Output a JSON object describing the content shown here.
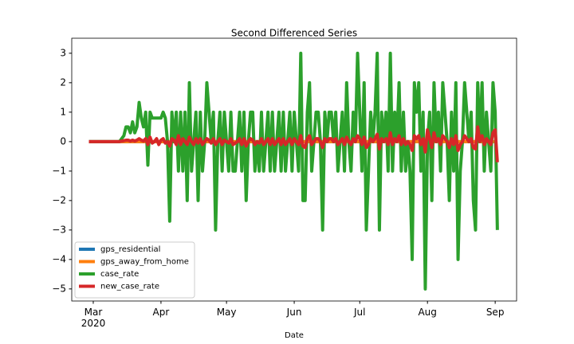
{
  "chart_data": {
    "type": "line",
    "title": "Second Differenced Series",
    "x_label": "Date",
    "categories": [
      null,
      null,
      "Mar\n2020",
      null,
      null,
      null,
      null,
      null,
      null,
      null,
      null,
      null,
      null,
      null,
      null,
      null,
      null,
      null,
      null,
      null,
      null,
      null,
      null,
      null,
      null,
      null,
      null,
      null,
      null,
      null,
      null,
      null,
      null,
      "Apr",
      null,
      null,
      null,
      null,
      null,
      null,
      null,
      null,
      null,
      null,
      null,
      null,
      null,
      null,
      null,
      null,
      null,
      null,
      null,
      null,
      null,
      null,
      null,
      null,
      null,
      null,
      null,
      null,
      null,
      "May",
      null,
      null,
      null,
      null,
      null,
      null,
      null,
      null,
      null,
      null,
      null,
      null,
      null,
      null,
      null,
      null,
      null,
      null,
      null,
      null,
      null,
      null,
      null,
      null,
      null,
      null,
      null,
      null,
      null,
      null,
      "Jun",
      null,
      null,
      null,
      null,
      null,
      null,
      null,
      null,
      null,
      null,
      null,
      null,
      null,
      null,
      null,
      null,
      null,
      null,
      null,
      null,
      null,
      null,
      null,
      null,
      null,
      null,
      null,
      null,
      null,
      "Jul",
      null,
      null,
      null,
      null,
      null,
      null,
      null,
      null,
      null,
      null,
      null,
      null,
      null,
      null,
      null,
      null,
      null,
      null,
      null,
      null,
      null,
      null,
      null,
      null,
      null,
      null,
      null,
      null,
      null,
      null,
      "Aug",
      null,
      null,
      null,
      null,
      null,
      null,
      null,
      null,
      null,
      null,
      null,
      null,
      null,
      null,
      null,
      null,
      null,
      null,
      null,
      null,
      null,
      null,
      null,
      null,
      null,
      null,
      null,
      null,
      null,
      null,
      "Sep",
      null
    ],
    "series": [
      {
        "name": "gps_residential",
        "color": "#1f77b4",
        "values": [
          0,
          0,
          0,
          0,
          0,
          0,
          0,
          0,
          0,
          0,
          0,
          0,
          0,
          0,
          0,
          0,
          0,
          0,
          0,
          0,
          0,
          0,
          0,
          0,
          0,
          0,
          0,
          0,
          0,
          0,
          0,
          0,
          0,
          0,
          0,
          0,
          0,
          0,
          0,
          0,
          0,
          0,
          0,
          0,
          0,
          0,
          0,
          0,
          0,
          0,
          0,
          0,
          0,
          0,
          0,
          0,
          0,
          0,
          0,
          0,
          0,
          0,
          0,
          0,
          0,
          0,
          0,
          0,
          0,
          0,
          0,
          0,
          0,
          0,
          0,
          0,
          0,
          0,
          0,
          0,
          0,
          0,
          0,
          0,
          0,
          0,
          0,
          0,
          0,
          0,
          0,
          0,
          0,
          0,
          0,
          0,
          0,
          0,
          0,
          0,
          0,
          0,
          0,
          0,
          0,
          0,
          0,
          0,
          0,
          0,
          0,
          0,
          0,
          0,
          0,
          0,
          0,
          0,
          0,
          0,
          0,
          0,
          0,
          0,
          0,
          0,
          0,
          0,
          0,
          0,
          0,
          0,
          0,
          0,
          0,
          0,
          0,
          0,
          0,
          0,
          0,
          0,
          0,
          0,
          0,
          0,
          0,
          0,
          0,
          0,
          0,
          0,
          0,
          0,
          0,
          0,
          0,
          0,
          0,
          0,
          0,
          0,
          0,
          0,
          0,
          0,
          0,
          0,
          0,
          0,
          0,
          0,
          0,
          0,
          0,
          0,
          0,
          0,
          0,
          0,
          0,
          0,
          0,
          0,
          0,
          0,
          0,
          0
        ]
      },
      {
        "name": "gps_away_from_home",
        "color": "#ff7f0e",
        "values": [
          0,
          0,
          0,
          0,
          0,
          0,
          0,
          0,
          0,
          0,
          0,
          0,
          0,
          0,
          0,
          0,
          0,
          0,
          0,
          0,
          0,
          0,
          0,
          0,
          0,
          0,
          0,
          0,
          0,
          0,
          0,
          0,
          0,
          0,
          0,
          0,
          0,
          0,
          0,
          0,
          0,
          0,
          0,
          0,
          0,
          0,
          0,
          0,
          0,
          0,
          0,
          0,
          0,
          0,
          0,
          0,
          0,
          0,
          0,
          0,
          0,
          0,
          0,
          0,
          0,
          0,
          0,
          0,
          0,
          0,
          0,
          0,
          0,
          0,
          0,
          0,
          0,
          0,
          0,
          0,
          0,
          0,
          0,
          0,
          0,
          0,
          0,
          0,
          0,
          0,
          0,
          0,
          0,
          0,
          0,
          0,
          0,
          0,
          0,
          0,
          0,
          0,
          0,
          0,
          0,
          0,
          0,
          0,
          0,
          0,
          0,
          0,
          0,
          0,
          0,
          0,
          0,
          0,
          0,
          0,
          0,
          0,
          0,
          0,
          0,
          0,
          0,
          0,
          0,
          0,
          0,
          0,
          0,
          0,
          0,
          0,
          0,
          0,
          0,
          0,
          0,
          0,
          0,
          0,
          0,
          0,
          0,
          0,
          0,
          0,
          0,
          0,
          0,
          0,
          0,
          0,
          0,
          0,
          0,
          0,
          0,
          0,
          0,
          0,
          0,
          0,
          0,
          0,
          0,
          0,
          0,
          0,
          0,
          0,
          0,
          0,
          0,
          0,
          0,
          0,
          0,
          0,
          0,
          0,
          0,
          0,
          0,
          0
        ]
      },
      {
        "name": "case_rate",
        "color": "#2ca02c",
        "values": [
          0,
          0,
          0,
          0,
          0,
          0,
          0,
          0,
          0,
          0,
          0,
          0,
          0,
          0,
          0,
          0.1,
          0.2,
          0.5,
          0.5,
          0.3,
          0.67,
          0.3,
          0.5,
          1.33,
          0.8,
          0.5,
          1.0,
          -0.8,
          1.0,
          0.8,
          0.8,
          0.8,
          0.8,
          0.8,
          1.0,
          0.8,
          0,
          -2.7,
          1,
          0,
          1,
          -1,
          1,
          -1,
          1,
          -2,
          2,
          -1,
          0,
          1,
          -2,
          1,
          -1,
          0,
          2,
          1,
          0,
          1,
          -3,
          0,
          1,
          -1,
          1,
          0,
          -1,
          1,
          -1,
          -1,
          0,
          1,
          -1,
          1,
          -2,
          0,
          1,
          1,
          -1,
          0,
          -1,
          1,
          -1,
          0,
          1,
          -1,
          1,
          -1,
          0,
          1,
          -1,
          1,
          -1,
          0,
          1,
          -1,
          1,
          0,
          -1,
          3,
          -2,
          -2,
          1,
          2,
          -1,
          0,
          1,
          1,
          0,
          -3,
          1,
          0,
          1,
          1,
          0,
          1,
          -1,
          0,
          1,
          -1,
          2,
          0,
          -1,
          1,
          0,
          3,
          1,
          -1,
          2,
          -3,
          -1,
          1,
          0,
          1,
          3,
          -3,
          1,
          0,
          1,
          -1,
          3,
          -1,
          1,
          0,
          2,
          -1,
          1,
          -1,
          0,
          -1,
          -4,
          2,
          1,
          2,
          -1,
          1,
          -5,
          0,
          1,
          -2,
          2,
          0,
          1,
          -1,
          2,
          1,
          0,
          -2,
          1,
          -1,
          2,
          -4,
          -1,
          0,
          2,
          1,
          0,
          1,
          -2,
          -3,
          2,
          0,
          2,
          -1,
          1,
          0,
          -1,
          2,
          1,
          -3
        ]
      },
      {
        "name": "new_case_rate",
        "color": "#d62728",
        "values": [
          0,
          0,
          0,
          0,
          0,
          0,
          0,
          0,
          0,
          0,
          0,
          0,
          0,
          0,
          0,
          0.02,
          0.03,
          0.05,
          0.05,
          0.02,
          0.05,
          0.02,
          0.05,
          0.1,
          0.05,
          0.02,
          0.1,
          -0.1,
          0.15,
          -0.05,
          0,
          0.1,
          -0.1,
          0.05,
          0.1,
          -0.05,
          0,
          -0.15,
          0.1,
          0.05,
          -0.1,
          0.2,
          -0.1,
          0.1,
          0,
          -0.1,
          0.15,
          0,
          -0.1,
          0.1,
          -0.05,
          0.1,
          -0.1,
          0,
          0.1,
          0.05,
          -0.05,
          0.1,
          -0.1,
          0,
          0.1,
          -0.1,
          0.05,
          0,
          -0.05,
          0.1,
          -0.1,
          -0.05,
          0,
          0.1,
          -0.1,
          0.1,
          -0.15,
          0,
          0.1,
          0.05,
          -0.1,
          0,
          -0.05,
          0.1,
          -0.1,
          0,
          0.1,
          -0.1,
          0.1,
          -0.1,
          0,
          0.1,
          -0.1,
          0.1,
          -0.1,
          0,
          0.1,
          -0.1,
          0.1,
          0,
          -0.1,
          0.2,
          -0.15,
          -0.2,
          0.1,
          0.2,
          -0.1,
          0,
          0.1,
          0.1,
          0,
          -0.2,
          0.1,
          0,
          0.1,
          0.1,
          0,
          0.1,
          -0.1,
          0,
          0.1,
          -0.1,
          0.15,
          0,
          -0.1,
          0.1,
          0,
          0.2,
          0.1,
          -0.1,
          0.15,
          -0.2,
          -0.1,
          0.1,
          0,
          0.1,
          0.25,
          -0.25,
          0.1,
          0,
          0.1,
          -0.1,
          0.3,
          -0.1,
          0.1,
          0,
          0.2,
          -0.1,
          0.1,
          -0.1,
          0,
          -0.1,
          -0.3,
          0.2,
          0.1,
          0.2,
          -0.1,
          0.1,
          -0.35,
          0.4,
          0.1,
          -0.2,
          0.3,
          0,
          0.1,
          -0.1,
          0.2,
          0.1,
          0,
          -0.2,
          0.1,
          -0.1,
          0.2,
          -0.3,
          -0.1,
          0,
          0.2,
          0.1,
          0,
          0.1,
          -0.2,
          -0.25,
          0.5,
          0,
          0.2,
          -0.1,
          0.1,
          0,
          -0.1,
          0.3,
          0.4,
          -0.7
        ]
      }
    ],
    "ylim": [
      -5.41,
      3.51
    ],
    "yticks": [
      {
        "value": -5,
        "label": "−5"
      },
      {
        "value": -4,
        "label": "−4"
      },
      {
        "value": -3,
        "label": "−3"
      },
      {
        "value": -2,
        "label": "−2"
      },
      {
        "value": -1,
        "label": "−1"
      },
      0,
      1,
      2,
      3
    ],
    "legend": "lower left"
  }
}
